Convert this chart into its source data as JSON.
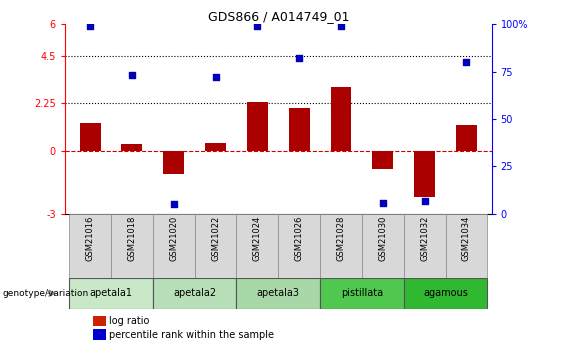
{
  "title": "GDS866 / A014749_01",
  "samples": [
    "GSM21016",
    "GSM21018",
    "GSM21020",
    "GSM21022",
    "GSM21024",
    "GSM21026",
    "GSM21028",
    "GSM21030",
    "GSM21032",
    "GSM21034"
  ],
  "log_ratio": [
    1.3,
    0.3,
    -1.1,
    0.35,
    2.3,
    2.0,
    3.0,
    -0.85,
    -2.2,
    1.2
  ],
  "percentile_rank": [
    99,
    73,
    5,
    72,
    99,
    82,
    99,
    6,
    7,
    80
  ],
  "groups": [
    {
      "label": "apetala1",
      "samples": [
        0,
        1
      ],
      "color": "#c8e8c8"
    },
    {
      "label": "apetala2",
      "samples": [
        2,
        3
      ],
      "color": "#b8e0b8"
    },
    {
      "label": "apetala3",
      "samples": [
        4,
        5
      ],
      "color": "#a8d8a8"
    },
    {
      "label": "pistillata",
      "samples": [
        6,
        7
      ],
      "color": "#50c850"
    },
    {
      "label": "agamous",
      "samples": [
        8,
        9
      ],
      "color": "#30b830"
    }
  ],
  "ylim_left": [
    -3,
    6
  ],
  "ylim_right": [
    0,
    100
  ],
  "yticks_left": [
    -3,
    0,
    2.25,
    4.5,
    6
  ],
  "ytick_labels_left": [
    "-3",
    "0",
    "2.25",
    "4.5",
    "6"
  ],
  "yticks_right": [
    0,
    25,
    50,
    75,
    100
  ],
  "ytick_labels_right": [
    "0",
    "25",
    "50",
    "75",
    "100%"
  ],
  "hlines_dotted": [
    2.25,
    4.5
  ],
  "hline_dashed": 0,
  "bar_color": "#aa0000",
  "dot_color": "#0000bb",
  "bar_width": 0.5,
  "sample_box_color": "#d8d8d8",
  "sample_box_edge": "#888888",
  "legend_bar_color": "#cc2200",
  "legend_dot_color": "#0000cc"
}
